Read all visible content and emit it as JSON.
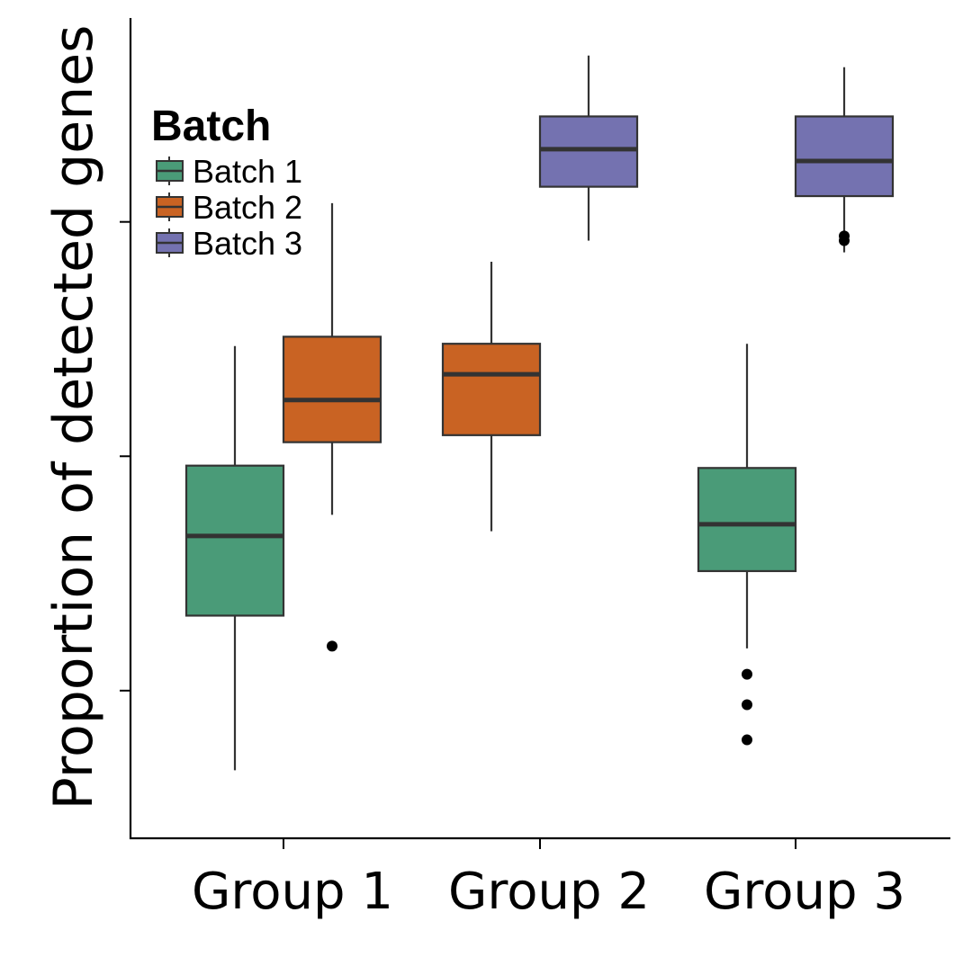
{
  "chart_data": {
    "type": "boxplot",
    "title": "",
    "xlabel": "",
    "ylabel": "Proportion of detected genes",
    "y_tick_labels_shown": false,
    "y_ticks": [
      0.0,
      1.0,
      2.0,
      3.0
    ],
    "ylim": [
      -0.63,
      2.87
    ],
    "categories": [
      "Group 1",
      "Group 2",
      "Group 3"
    ],
    "legend": {
      "title": "Batch",
      "placement": "top-left",
      "entries": [
        "Batch 1",
        "Batch 2",
        "Batch 3"
      ]
    },
    "series": [
      {
        "name": "Batch 1",
        "color": "#4a9b78",
        "boxes": [
          {
            "group": "Group 1",
            "whisker_low": -0.34,
            "q1": 0.32,
            "median": 0.66,
            "q3": 0.96,
            "whisker_high": 1.47,
            "outliers": []
          },
          {
            "group": "Group 3",
            "whisker_low": 0.18,
            "q1": 0.51,
            "median": 0.71,
            "q3": 0.95,
            "whisker_high": 1.48,
            "outliers": [
              0.07,
              -0.06,
              -0.21
            ]
          }
        ]
      },
      {
        "name": "Batch 2",
        "color": "#c96323",
        "boxes": [
          {
            "group": "Group 1",
            "whisker_low": 0.75,
            "q1": 1.06,
            "median": 1.24,
            "q3": 1.51,
            "whisker_high": 2.08,
            "outliers": [
              0.19
            ]
          },
          {
            "group": "Group 2",
            "whisker_low": 0.68,
            "q1": 1.09,
            "median": 1.35,
            "q3": 1.48,
            "whisker_high": 1.83,
            "outliers": []
          }
        ]
      },
      {
        "name": "Batch 3",
        "color": "#7472b0",
        "boxes": [
          {
            "group": "Group 2",
            "whisker_low": 1.92,
            "q1": 2.15,
            "median": 2.31,
            "q3": 2.45,
            "whisker_high": 2.71,
            "outliers": []
          },
          {
            "group": "Group 3",
            "whisker_low": 1.87,
            "q1": 2.11,
            "median": 2.26,
            "q3": 2.45,
            "whisker_high": 2.66,
            "outliers": [
              1.94,
              1.92
            ]
          }
        ]
      }
    ]
  }
}
